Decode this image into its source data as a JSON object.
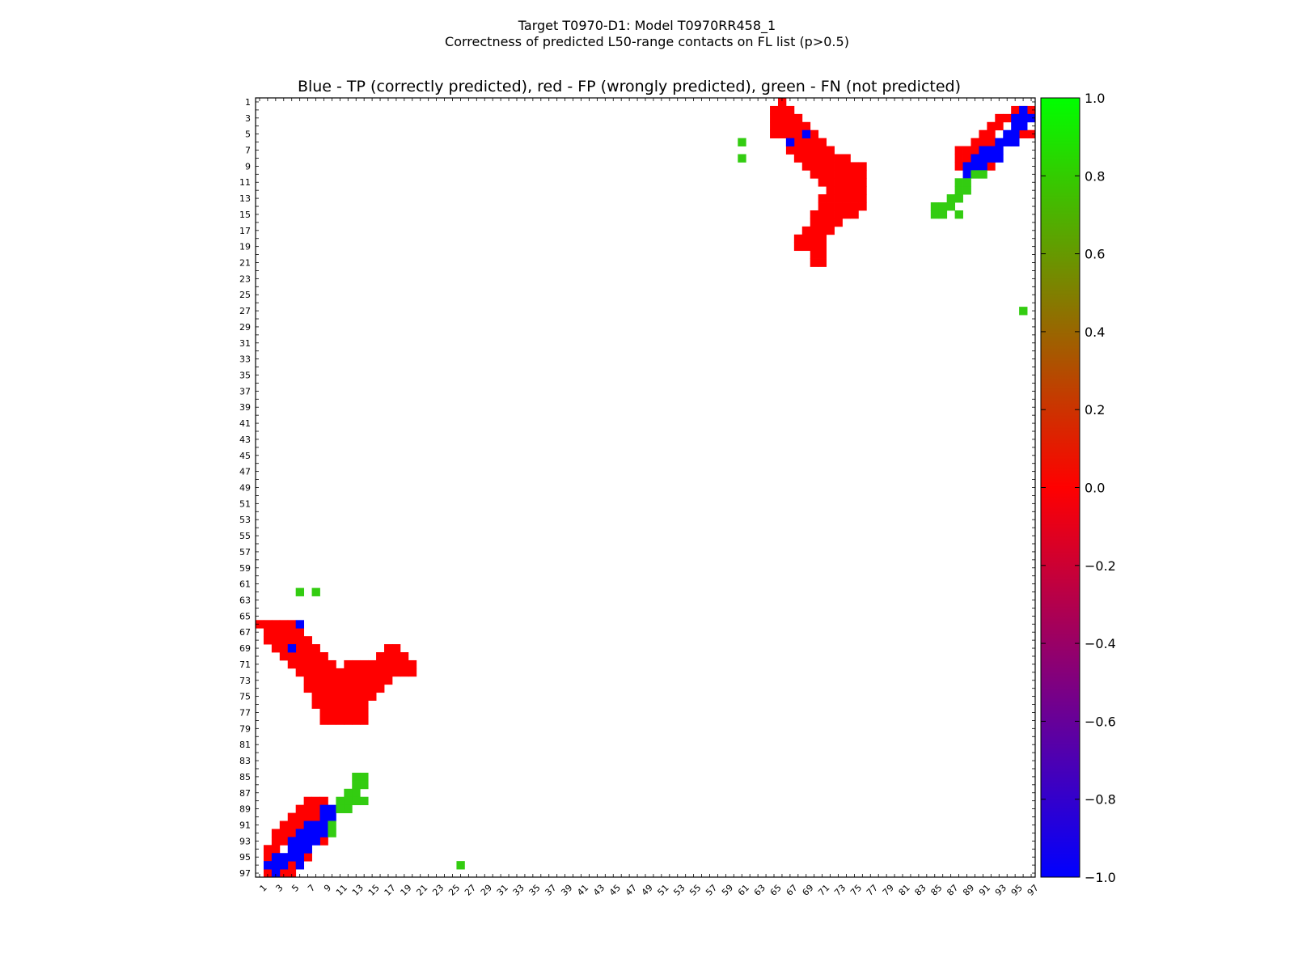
{
  "figure": {
    "title_line1": "Target T0970-D1: Model T0970RR458_1",
    "title_line2": "Correctness of predicted L50-range contacts on FL list (p>0.5)"
  },
  "chart_data": {
    "type": "heatmap",
    "title": "Blue - TP (correctly predicted), red - FP (wrongly predicted), green - FN (not predicted)",
    "x_ticks": [
      "1",
      "3",
      "5",
      "7",
      "9",
      "11",
      "13",
      "15",
      "17",
      "19",
      "21",
      "23",
      "25",
      "27",
      "29",
      "31",
      "33",
      "35",
      "37",
      "39",
      "41",
      "43",
      "45",
      "47",
      "49",
      "51",
      "53",
      "55",
      "57",
      "59",
      "61",
      "63",
      "65",
      "67",
      "69",
      "71",
      "73",
      "75",
      "77",
      "79",
      "81",
      "83",
      "85",
      "87",
      "89",
      "91",
      "93",
      "95",
      "97"
    ],
    "y_ticks": [
      "1",
      "3",
      "5",
      "7",
      "9",
      "11",
      "13",
      "15",
      "17",
      "19",
      "21",
      "23",
      "25",
      "27",
      "29",
      "31",
      "33",
      "35",
      "37",
      "39",
      "41",
      "43",
      "45",
      "47",
      "49",
      "51",
      "53",
      "55",
      "57",
      "59",
      "61",
      "63",
      "65",
      "67",
      "69",
      "71",
      "73",
      "75",
      "77",
      "79",
      "81",
      "83",
      "85",
      "87",
      "89",
      "91",
      "93",
      "95",
      "97"
    ],
    "xlim": [
      1,
      97
    ],
    "ylim": [
      1,
      97
    ],
    "colors": {
      "TP": "#0000ff",
      "FP": "#ff0000",
      "FN": "#33cc11"
    },
    "colorbar": {
      "ticks": [
        "1.0",
        "0.8",
        "0.6",
        "0.4",
        "0.2",
        "0.0",
        "−0.2",
        "−0.4",
        "−0.6",
        "−0.8",
        "−1.0"
      ],
      "vmin": -1.0,
      "vmax": 1.0,
      "gradient": [
        "#00ff00",
        "#ff0000",
        "#0000ff"
      ]
    },
    "cells": {
      "FP": [
        [
          1,
          66
        ],
        [
          2,
          65
        ],
        [
          2,
          66
        ],
        [
          2,
          67
        ],
        [
          2,
          95
        ],
        [
          2,
          96
        ],
        [
          2,
          97
        ],
        [
          3,
          65
        ],
        [
          3,
          66
        ],
        [
          3,
          67
        ],
        [
          3,
          68
        ],
        [
          3,
          93
        ],
        [
          3,
          94
        ],
        [
          4,
          65
        ],
        [
          4,
          66
        ],
        [
          4,
          67
        ],
        [
          4,
          68
        ],
        [
          4,
          69
        ],
        [
          4,
          92
        ],
        [
          4,
          93
        ],
        [
          5,
          65
        ],
        [
          5,
          66
        ],
        [
          5,
          67
        ],
        [
          5,
          68
        ],
        [
          5,
          70
        ],
        [
          5,
          91
        ],
        [
          5,
          92
        ],
        [
          5,
          96
        ],
        [
          5,
          97
        ],
        [
          6,
          67
        ],
        [
          6,
          68
        ],
        [
          6,
          69
        ],
        [
          6,
          70
        ],
        [
          6,
          71
        ],
        [
          6,
          90
        ],
        [
          6,
          91
        ],
        [
          6,
          92
        ],
        [
          7,
          67
        ],
        [
          7,
          68
        ],
        [
          7,
          69
        ],
        [
          7,
          70
        ],
        [
          7,
          71
        ],
        [
          7,
          72
        ],
        [
          7,
          88
        ],
        [
          7,
          89
        ],
        [
          7,
          90
        ],
        [
          8,
          68
        ],
        [
          8,
          69
        ],
        [
          8,
          70
        ],
        [
          8,
          71
        ],
        [
          8,
          72
        ],
        [
          8,
          73
        ],
        [
          8,
          74
        ],
        [
          8,
          88
        ],
        [
          8,
          89
        ],
        [
          9,
          69
        ],
        [
          9,
          70
        ],
        [
          9,
          71
        ],
        [
          9,
          72
        ],
        [
          9,
          73
        ],
        [
          9,
          74
        ],
        [
          9,
          75
        ],
        [
          9,
          76
        ],
        [
          9,
          88
        ],
        [
          9,
          92
        ],
        [
          10,
          70
        ],
        [
          10,
          71
        ],
        [
          10,
          72
        ],
        [
          10,
          73
        ],
        [
          10,
          74
        ],
        [
          10,
          75
        ],
        [
          10,
          76
        ],
        [
          11,
          71
        ],
        [
          11,
          72
        ],
        [
          11,
          73
        ],
        [
          11,
          74
        ],
        [
          11,
          75
        ],
        [
          11,
          76
        ],
        [
          12,
          72
        ],
        [
          12,
          73
        ],
        [
          12,
          74
        ],
        [
          12,
          75
        ],
        [
          12,
          76
        ],
        [
          13,
          71
        ],
        [
          13,
          72
        ],
        [
          13,
          73
        ],
        [
          13,
          74
        ],
        [
          13,
          75
        ],
        [
          13,
          76
        ],
        [
          14,
          71
        ],
        [
          14,
          72
        ],
        [
          14,
          73
        ],
        [
          14,
          74
        ],
        [
          14,
          75
        ],
        [
          14,
          76
        ],
        [
          15,
          70
        ],
        [
          15,
          71
        ],
        [
          15,
          72
        ],
        [
          15,
          73
        ],
        [
          15,
          74
        ],
        [
          15,
          75
        ],
        [
          16,
          70
        ],
        [
          16,
          71
        ],
        [
          16,
          72
        ],
        [
          16,
          73
        ],
        [
          17,
          69
        ],
        [
          17,
          70
        ],
        [
          17,
          71
        ],
        [
          17,
          72
        ],
        [
          18,
          68
        ],
        [
          18,
          69
        ],
        [
          18,
          70
        ],
        [
          18,
          71
        ],
        [
          19,
          68
        ],
        [
          19,
          69
        ],
        [
          19,
          70
        ],
        [
          19,
          71
        ],
        [
          20,
          70
        ],
        [
          20,
          71
        ],
        [
          21,
          70
        ],
        [
          21,
          71
        ],
        [
          66,
          1
        ],
        [
          66,
          2
        ],
        [
          66,
          3
        ],
        [
          66,
          4
        ],
        [
          66,
          5
        ],
        [
          67,
          2
        ],
        [
          67,
          3
        ],
        [
          67,
          4
        ],
        [
          67,
          5
        ],
        [
          67,
          6
        ],
        [
          68,
          2
        ],
        [
          68,
          3
        ],
        [
          68,
          4
        ],
        [
          68,
          5
        ],
        [
          68,
          6
        ],
        [
          68,
          7
        ],
        [
          69,
          3
        ],
        [
          69,
          4
        ],
        [
          69,
          6
        ],
        [
          69,
          7
        ],
        [
          69,
          8
        ],
        [
          69,
          17
        ],
        [
          69,
          18
        ],
        [
          70,
          4
        ],
        [
          70,
          5
        ],
        [
          70,
          6
        ],
        [
          70,
          7
        ],
        [
          70,
          8
        ],
        [
          70,
          9
        ],
        [
          70,
          16
        ],
        [
          70,
          17
        ],
        [
          70,
          18
        ],
        [
          70,
          19
        ],
        [
          71,
          5
        ],
        [
          71,
          6
        ],
        [
          71,
          7
        ],
        [
          71,
          8
        ],
        [
          71,
          9
        ],
        [
          71,
          10
        ],
        [
          71,
          12
        ],
        [
          71,
          13
        ],
        [
          71,
          14
        ],
        [
          71,
          15
        ],
        [
          71,
          16
        ],
        [
          71,
          17
        ],
        [
          71,
          18
        ],
        [
          71,
          19
        ],
        [
          71,
          20
        ],
        [
          72,
          6
        ],
        [
          72,
          7
        ],
        [
          72,
          8
        ],
        [
          72,
          9
        ],
        [
          72,
          10
        ],
        [
          72,
          11
        ],
        [
          72,
          12
        ],
        [
          72,
          13
        ],
        [
          72,
          14
        ],
        [
          72,
          15
        ],
        [
          72,
          16
        ],
        [
          72,
          17
        ],
        [
          72,
          18
        ],
        [
          72,
          19
        ],
        [
          72,
          20
        ],
        [
          73,
          7
        ],
        [
          73,
          8
        ],
        [
          73,
          9
        ],
        [
          73,
          10
        ],
        [
          73,
          11
        ],
        [
          73,
          12
        ],
        [
          73,
          13
        ],
        [
          73,
          14
        ],
        [
          73,
          15
        ],
        [
          73,
          16
        ],
        [
          73,
          17
        ],
        [
          74,
          7
        ],
        [
          74,
          8
        ],
        [
          74,
          9
        ],
        [
          74,
          10
        ],
        [
          74,
          11
        ],
        [
          74,
          12
        ],
        [
          74,
          13
        ],
        [
          74,
          14
        ],
        [
          74,
          15
        ],
        [
          74,
          16
        ],
        [
          75,
          8
        ],
        [
          75,
          9
        ],
        [
          75,
          10
        ],
        [
          75,
          11
        ],
        [
          75,
          12
        ],
        [
          75,
          13
        ],
        [
          75,
          14
        ],
        [
          75,
          15
        ],
        [
          76,
          8
        ],
        [
          76,
          9
        ],
        [
          76,
          10
        ],
        [
          76,
          11
        ],
        [
          76,
          12
        ],
        [
          76,
          13
        ],
        [
          76,
          14
        ],
        [
          77,
          9
        ],
        [
          77,
          10
        ],
        [
          77,
          11
        ],
        [
          77,
          12
        ],
        [
          77,
          13
        ],
        [
          77,
          14
        ],
        [
          78,
          9
        ],
        [
          78,
          10
        ],
        [
          78,
          11
        ],
        [
          78,
          12
        ],
        [
          78,
          13
        ],
        [
          78,
          14
        ],
        [
          88,
          7
        ],
        [
          88,
          8
        ],
        [
          88,
          9
        ],
        [
          89,
          6
        ],
        [
          89,
          7
        ],
        [
          89,
          8
        ],
        [
          90,
          5
        ],
        [
          90,
          6
        ],
        [
          90,
          7
        ],
        [
          90,
          8
        ],
        [
          91,
          4
        ],
        [
          91,
          5
        ],
        [
          91,
          6
        ],
        [
          92,
          3
        ],
        [
          92,
          4
        ],
        [
          92,
          5
        ],
        [
          93,
          3
        ],
        [
          93,
          4
        ],
        [
          93,
          9
        ],
        [
          94,
          2
        ],
        [
          94,
          3
        ],
        [
          95,
          2
        ],
        [
          95,
          7
        ],
        [
          96,
          5
        ],
        [
          97,
          2
        ],
        [
          97,
          4
        ],
        [
          97,
          5
        ]
      ],
      "TP": [
        [
          2,
          96
        ],
        [
          3,
          95
        ],
        [
          3,
          96
        ],
        [
          3,
          97
        ],
        [
          4,
          95
        ],
        [
          4,
          96
        ],
        [
          5,
          94
        ],
        [
          5,
          95
        ],
        [
          5,
          69
        ],
        [
          6,
          93
        ],
        [
          6,
          94
        ],
        [
          6,
          95
        ],
        [
          6,
          67
        ],
        [
          7,
          91
        ],
        [
          7,
          92
        ],
        [
          7,
          93
        ],
        [
          8,
          90
        ],
        [
          8,
          91
        ],
        [
          8,
          92
        ],
        [
          8,
          93
        ],
        [
          9,
          89
        ],
        [
          9,
          90
        ],
        [
          9,
          91
        ],
        [
          10,
          89
        ],
        [
          66,
          6
        ],
        [
          69,
          5
        ],
        [
          89,
          9
        ],
        [
          89,
          10
        ],
        [
          90,
          9
        ],
        [
          90,
          10
        ],
        [
          91,
          7
        ],
        [
          91,
          8
        ],
        [
          91,
          9
        ],
        [
          92,
          6
        ],
        [
          92,
          7
        ],
        [
          92,
          8
        ],
        [
          92,
          9
        ],
        [
          93,
          5
        ],
        [
          93,
          6
        ],
        [
          93,
          7
        ],
        [
          93,
          8
        ],
        [
          94,
          5
        ],
        [
          94,
          6
        ],
        [
          94,
          7
        ],
        [
          95,
          3
        ],
        [
          95,
          4
        ],
        [
          95,
          5
        ],
        [
          95,
          6
        ],
        [
          96,
          2
        ],
        [
          96,
          3
        ],
        [
          96,
          4
        ],
        [
          96,
          6
        ],
        [
          97,
          3
        ]
      ],
      "FN": [
        [
          6,
          61
        ],
        [
          8,
          61
        ],
        [
          10,
          90
        ],
        [
          10,
          91
        ],
        [
          11,
          88
        ],
        [
          11,
          89
        ],
        [
          12,
          88
        ],
        [
          12,
          89
        ],
        [
          13,
          87
        ],
        [
          13,
          88
        ],
        [
          14,
          85
        ],
        [
          14,
          86
        ],
        [
          14,
          87
        ],
        [
          15,
          85
        ],
        [
          15,
          86
        ],
        [
          15,
          88
        ],
        [
          27,
          96
        ],
        [
          62,
          6
        ],
        [
          62,
          8
        ],
        [
          85,
          13
        ],
        [
          85,
          14
        ],
        [
          86,
          13
        ],
        [
          86,
          14
        ],
        [
          87,
          12
        ],
        [
          87,
          13
        ],
        [
          88,
          11
        ],
        [
          88,
          12
        ],
        [
          88,
          13
        ],
        [
          88,
          14
        ],
        [
          89,
          11
        ],
        [
          89,
          12
        ],
        [
          91,
          10
        ],
        [
          92,
          10
        ],
        [
          96,
          26
        ]
      ]
    }
  }
}
